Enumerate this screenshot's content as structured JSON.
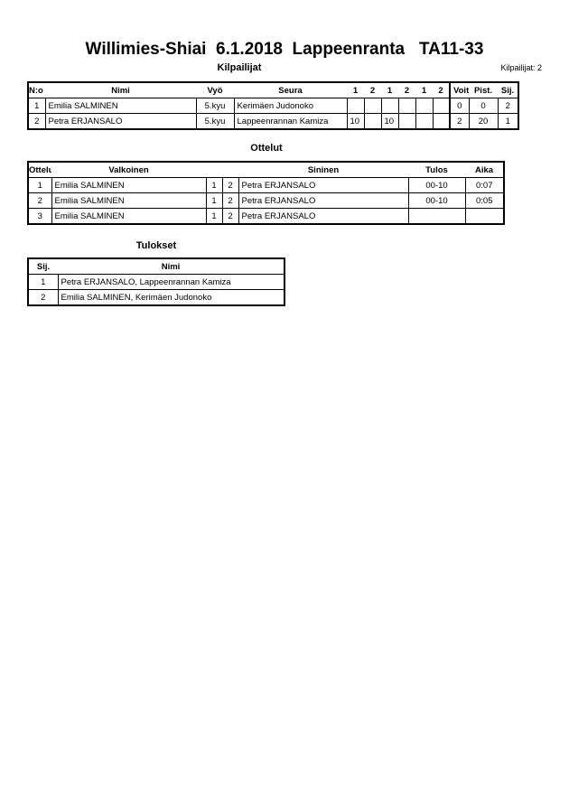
{
  "title": "Willimies-Shiai  6.1.2018  Lappeenranta   TA11-33",
  "competitors": {
    "heading": "Kilpailijat",
    "count_label": "Kilpailijat: 2",
    "columns": [
      "N:o",
      "Nimi",
      "Vyö",
      "Seura",
      "1",
      "2",
      "1",
      "2",
      "1",
      "2",
      "Voit.",
      "Pist.",
      "Sij."
    ],
    "rows": [
      {
        "no": "1",
        "name": "Emilia SALMINEN",
        "belt": "5.kyu",
        "club": "Kerimäen Judonoko",
        "scores": [
          "",
          "",
          "",
          "",
          "",
          ""
        ],
        "wins": "0",
        "points": "0",
        "rank": "2"
      },
      {
        "no": "2",
        "name": "Petra ERJANSALO",
        "belt": "5.kyu",
        "club": "Lappeenrannan Kamiza",
        "scores": [
          "10",
          "",
          "10",
          "",
          "",
          ""
        ],
        "wins": "2",
        "points": "20",
        "rank": "1"
      }
    ]
  },
  "matches": {
    "heading": "Ottelut",
    "columns": [
      "Ottelu",
      "Valkoinen",
      "Sininen",
      "Tulos",
      "Aika"
    ],
    "rows": [
      {
        "no": "1",
        "white": "Emilia SALMINEN",
        "w": "1",
        "b": "2",
        "blue": "Petra ERJANSALO",
        "result": "00-10",
        "time": "0:07"
      },
      {
        "no": "2",
        "white": "Emilia SALMINEN",
        "w": "1",
        "b": "2",
        "blue": "Petra ERJANSALO",
        "result": "00-10",
        "time": "0:05"
      },
      {
        "no": "3",
        "white": "Emilia SALMINEN",
        "w": "1",
        "b": "2",
        "blue": "Petra ERJANSALO",
        "result": "",
        "time": ""
      }
    ]
  },
  "results": {
    "heading": "Tulokset",
    "columns": [
      "Sij.",
      "Nimi"
    ],
    "rows": [
      {
        "rank": "1",
        "name": "Petra ERJANSALO, Lappeenrannan Kamiza"
      },
      {
        "rank": "2",
        "name": "Emilia SALMINEN, Kerimäen Judonoko"
      }
    ]
  }
}
